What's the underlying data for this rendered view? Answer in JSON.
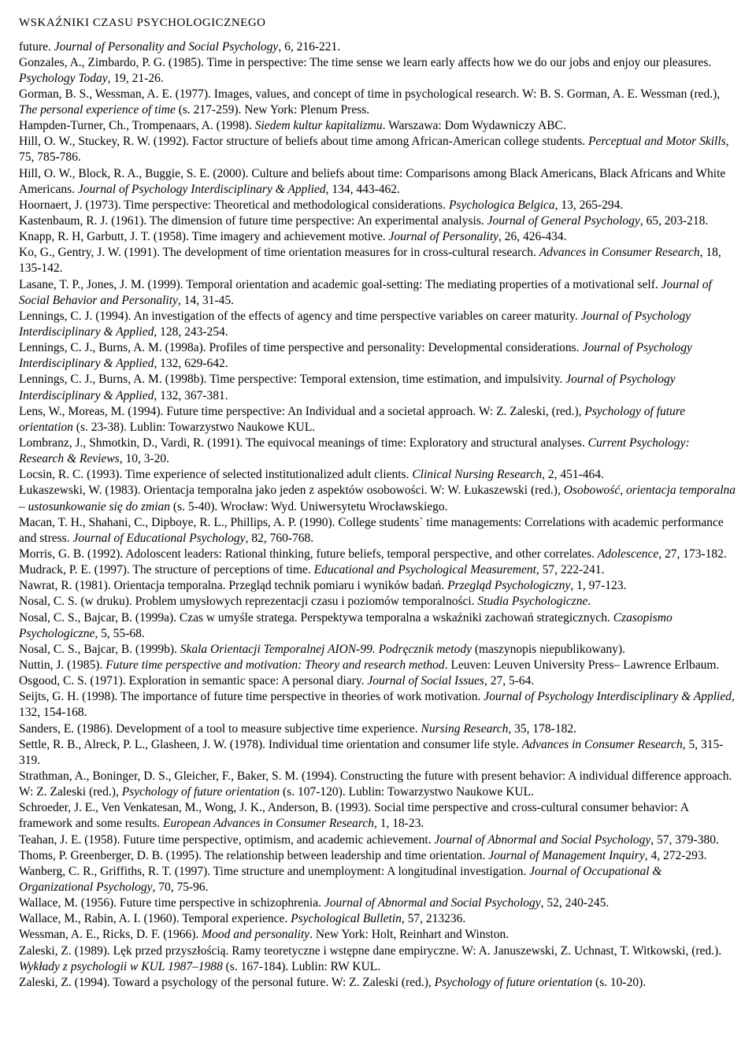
{
  "header": "WSKAŹNIKI CZASU PSYCHOLOGICZNEGO",
  "references": [
    {
      "html": "future. <i>Journal of Personality and Social Psychology</i>, 6, 216-221."
    },
    {
      "html": "Gonzales, A., Zimbardo, P. G. (1985). Time in perspective: The time sense we learn early affects how we do our jobs and enjoy our pleasures. <i>Psychology Today</i>, 19, 21-26."
    },
    {
      "html": "Gorman, B. S., Wessman, A. E. (1977). Images, values, and concept of time in psychological research. W: B. S. Gorman, A. E. Wessman (red.), <i>The personal experience of time</i> (s. 217-259). New York: Plenum Press."
    },
    {
      "html": "Hampden-Turner, Ch., Trompenaars, A. (1998). <i>Siedem kultur kapitalizmu</i>. Warszawa: Dom Wydawniczy ABC."
    },
    {
      "html": "Hill, O. W., Stuckey, R. W. (1992). Factor structure of beliefs about time among African-American college students. <i>Perceptual and Motor Skills</i>, 75, 785-786."
    },
    {
      "html": "Hill, O. W., Block, R. A., Buggie, S. E. (2000). Culture and beliefs about time: Comparisons among Black Americans, Black Africans and White Americans. <i>Journal of Psychology Interdisciplinary & Applied</i>, 134, 443-462."
    },
    {
      "html": "Hoornaert, J. (1973). Time perspective: Theoretical and methodological considerations. <i>Psychologica Belgica</i>, 13, 265-294."
    },
    {
      "html": "Kastenbaum, R. J. (1961). The dimension of future time perspective: An experimental analysis. <i>Journal of General Psychology</i>, 65, 203-218."
    },
    {
      "html": "Knapp, R. H, Garbutt, J. T. (1958). Time imagery and achievement motive. <i>Journal of Personality</i>, 26, 426-434."
    },
    {
      "html": "Ko, G., Gentry, J. W. (1991). The development of time orientation measures for in cross-cultural research. <i>Advances in Consumer Research</i>, 18, 135-142."
    },
    {
      "html": "Lasane, T. P., Jones, J. M. (1999). Temporal orientation and academic goal-setting: The mediating properties of a motivational self. <i>Journal of Social Behavior and Personality</i>, 14, 31-45."
    },
    {
      "html": "Lennings, C. J. (1994). An investigation of the effects of agency and time perspective variables on career maturity. <i>Journal of Psychology Interdisciplinary & Applied</i>, 128, 243-254."
    },
    {
      "html": "Lennings, C. J., Burns, A. M. (1998a). Profiles of time perspective and personality: Developmental considerations. <i>Journal of Psychology Interdisciplinary & Applied</i>, 132, 629-642."
    },
    {
      "html": "Lennings, C. J., Burns, A. M. (1998b). Time perspective: Temporal extension, time estimation, and impulsivity. <i>Journal of Psychology Interdisciplinary & Applied</i>, 132, 367-381."
    },
    {
      "html": "Lens, W., Moreas, M. (1994). Future time perspective: An Individual and a societal approach. W: Z. Zaleski, (red.), <i>Psychology of future orientation</i> (s. 23-38). Lublin: Towarzystwo Naukowe KUL."
    },
    {
      "html": "Lombranz, J., Shmotkin, D., Vardi, R. (1991). The equivocal meanings of time: Exploratory and structural analyses. <i>Current Psychology: Research & Reviews</i>, 10, 3-20."
    },
    {
      "html": "Locsin, R. C. (1993). Time experience of selected institutionalized adult clients. <i>Clinical Nursing Research</i>, 2, 451-464."
    },
    {
      "html": "Łukaszewski, W. (1983). Orientacja temporalna jako jeden z aspektów osobowości. W: W. Łukaszewski (red.), <i>Osobowość, orientacja temporalna – ustosunkowanie się do zmian</i> (s. 5-40). Wrocław: Wyd. Uniwersytetu Wrocławskiego."
    },
    {
      "html": "Macan, T. H., Shahani, C., Dipboye, R. L., Phillips, A. P. (1990). College students` time managements: Correlations with academic performance and stress. <i>Journal of Educational Psychology</i>, 82, 760-768."
    },
    {
      "html": "Morris, G. B. (1992). Adoloscent leaders: Rational thinking, future beliefs, temporal perspective, and other correlates. <i>Adolescence</i>, 27, 173-182."
    },
    {
      "html": "Mudrack, P. E. (1997). The structure of perceptions of time. <i>Educational and Psychological Measurement</i>, 57, 222-241."
    },
    {
      "html": "Nawrat, R. (1981). Orientacja temporalna. Przegląd technik pomiaru i wyników badań. <i>Przegląd Psychologiczny</i>, 1, 97-123."
    },
    {
      "html": "Nosal, C. S. (w druku). Problem umysłowych reprezentacji czasu i poziomów temporalności. <i>Studia Psychologiczne</i>."
    },
    {
      "html": "Nosal, C. S., Bajcar, B. (1999a). Czas w umyśle stratega. Perspektywa temporalna a wskaźniki zachowań strategicznych. <i>Czasopismo Psychologiczne</i>, 5, 55-68."
    },
    {
      "html": "Nosal, C. S., Bajcar, B. (1999b). <i>Skala Orientacji Temporalnej AION-99. Podręcznik metody</i> (maszynopis niepublikowany)."
    },
    {
      "html": "Nuttin, J. (1985). <i>Future time perspective and motivation: Theory and research method</i>. Leuven: Leuven University Press– Lawrence Erlbaum."
    },
    {
      "html": "Osgood, C. S. (1971). Exploration in semantic space: A personal diary. <i>Journal of Social Issues</i>, 27, 5-64."
    },
    {
      "html": "Seijts, G. H. (1998). The importance of future time perspective in theories of work motivation. <i>Journal of Psychology Interdisciplinary & Applied</i>, 132, 154-168."
    },
    {
      "html": "Sanders, E. (1986). Development of a tool to measure subjective time experience. <i>Nursing Research</i>, 35, 178-182."
    },
    {
      "html": "Settle, R. B., Alreck, P. L., Glasheen, J. W. (1978). Individual time orientation and consumer life style. <i>Advances in Consumer Research</i>, 5, 315-319."
    },
    {
      "html": "Strathman, A., Boninger, D. S., Gleicher, F., Baker, S. M. (1994). Constructing the future with present behavior: A individual difference approach. W: Z. Zaleski (red.), <i>Psychology of future orientation</i> (s. 107-120). Lublin: Towarzystwo Naukowe KUL."
    },
    {
      "html": "Schroeder, J. E., Ven Venkatesan, M., Wong, J. K., Anderson, B. (1993). Social time perspective and cross-cultural consumer behavior: A framework and some results. <i>European Advances in Consumer Research</i>, 1, 18-23."
    },
    {
      "html": "Teahan, J. E. (1958). Future time perspective, optimism, and academic achievement. <i>Journal of Abnormal and Social Psychology</i>, 57, 379-380."
    },
    {
      "html": "Thoms, P. Greenberger, D. B. (1995). The relationship between leadership and time orientation. <i>Journal of Management Inquiry</i>, 4, 272-293."
    },
    {
      "html": "Wanberg, C. R., Griffiths, R. T. (1997). Time structure and unemployment: A longitudinal investigation. <i>Journal of Occupational & Organizational Psychology</i>, 70, 75-96."
    },
    {
      "html": "Wallace, M. (1956). Future time perspective in schizophrenia. <i>Journal of Abnormal and Social Psychology</i>, 52, 240-245."
    },
    {
      "html": "Wallace, M., Rabin, A. I. (1960). Temporal experience. <i>Psychological Bulletin</i>, 57, 213236."
    },
    {
      "html": "Wessman, A. E., Ricks, D. F. (1966). <i>Mood and personality</i>. New York: Holt, Reinhart and Winston."
    },
    {
      "html": "Zaleski, Z. (1989). Lęk przed przyszłością. Ramy teoretyczne i wstępne dane empiryczne. W: A. Januszewski, Z. Uchnast, T. Witkowski, (red.). <i>Wykłady z psychologii w KUL 1987–1988</i> (s. 167-184). Lublin: RW KUL."
    },
    {
      "html": "Zaleski, Z. (1994). Toward a psychology of the personal future. W: Z. Zaleski (red.), <i>Psychology of future orientation</i> (s. 10-20)."
    }
  ]
}
